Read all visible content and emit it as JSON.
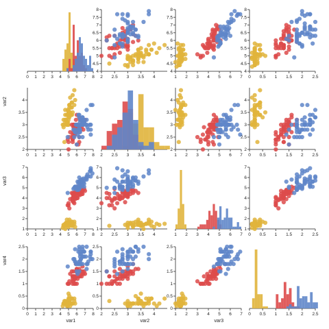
{
  "chart_data": {
    "type": "scatter-matrix",
    "variables": [
      "var1",
      "var2",
      "var3",
      "var4"
    ],
    "axis_titles_x": [
      "var1",
      "var2",
      "var3",
      ""
    ],
    "axis_titles_y": [
      "",
      "var2",
      "var3",
      "var4"
    ],
    "colors": [
      "#e0b43c",
      "#dd4b4b",
      "#5f86c9"
    ],
    "ranges": [
      [
        0,
        8
      ],
      [
        2,
        4.5
      ],
      [
        1,
        7
      ],
      [
        0,
        2.5
      ]
    ],
    "ticks": [
      [
        0,
        1,
        2,
        3,
        4,
        5,
        6,
        7,
        8
      ],
      [
        2,
        2.5,
        3,
        3.5,
        4
      ],
      [
        1,
        2,
        3,
        4,
        5,
        6,
        7
      ],
      [
        0,
        0.5,
        1,
        1.5,
        2,
        2.5
      ]
    ],
    "scatter_y_ticks": [
      [
        "4",
        "4.5",
        "5",
        "5.5",
        "6",
        "6.5",
        "7",
        "7.5",
        "8"
      ],
      [
        "2",
        "2.5",
        "3",
        "3.5",
        "4"
      ],
      [
        "1",
        "2",
        "3",
        "4",
        "5",
        "6",
        "7"
      ],
      [
        "0",
        "0.5",
        "1",
        "1.5",
        "2",
        "2.5"
      ]
    ],
    "scatter_y_range_row0": [
      4,
      8
    ],
    "histogram_bins": [
      {
        "var": "var1",
        "bin_width": 0.25
      },
      {
        "var": "var2",
        "bin_width": 0.2
      },
      {
        "var": "var3",
        "bin_width": 0.2
      },
      {
        "var": "var4",
        "bin_width": 0.1
      }
    ],
    "series": [
      {
        "points": [
          [
            5.1,
            3.5,
            1.4,
            0.2
          ],
          [
            4.9,
            3.0,
            1.4,
            0.2
          ],
          [
            4.7,
            3.2,
            1.3,
            0.2
          ],
          [
            4.6,
            3.1,
            1.5,
            0.2
          ],
          [
            5.0,
            3.6,
            1.4,
            0.2
          ],
          [
            5.4,
            3.9,
            1.7,
            0.4
          ],
          [
            4.6,
            3.4,
            1.4,
            0.3
          ],
          [
            5.0,
            3.4,
            1.5,
            0.2
          ],
          [
            4.4,
            2.9,
            1.4,
            0.2
          ],
          [
            4.9,
            3.1,
            1.5,
            0.1
          ],
          [
            5.4,
            3.7,
            1.5,
            0.2
          ],
          [
            4.8,
            3.4,
            1.6,
            0.2
          ],
          [
            4.8,
            3.0,
            1.4,
            0.1
          ],
          [
            4.3,
            3.0,
            1.1,
            0.1
          ],
          [
            5.8,
            4.0,
            1.2,
            0.2
          ],
          [
            5.7,
            4.4,
            1.5,
            0.4
          ],
          [
            5.4,
            3.9,
            1.3,
            0.4
          ],
          [
            5.1,
            3.5,
            1.4,
            0.3
          ],
          [
            5.7,
            3.8,
            1.7,
            0.3
          ],
          [
            5.1,
            3.8,
            1.5,
            0.3
          ],
          [
            5.4,
            3.4,
            1.7,
            0.2
          ],
          [
            5.1,
            3.7,
            1.5,
            0.4
          ],
          [
            4.6,
            3.6,
            1.0,
            0.2
          ],
          [
            5.1,
            3.3,
            1.7,
            0.5
          ],
          [
            4.8,
            3.4,
            1.9,
            0.2
          ],
          [
            5.0,
            3.0,
            1.6,
            0.2
          ],
          [
            5.0,
            3.4,
            1.6,
            0.4
          ],
          [
            5.2,
            3.5,
            1.5,
            0.2
          ],
          [
            5.2,
            3.4,
            1.4,
            0.2
          ],
          [
            4.7,
            3.2,
            1.6,
            0.2
          ],
          [
            4.8,
            3.1,
            1.6,
            0.2
          ],
          [
            5.4,
            3.4,
            1.5,
            0.4
          ],
          [
            5.2,
            4.1,
            1.5,
            0.1
          ],
          [
            5.5,
            4.2,
            1.4,
            0.2
          ],
          [
            4.9,
            3.1,
            1.5,
            0.2
          ],
          [
            5.0,
            3.2,
            1.2,
            0.2
          ],
          [
            5.5,
            3.5,
            1.3,
            0.2
          ],
          [
            4.9,
            3.6,
            1.4,
            0.1
          ],
          [
            4.4,
            3.0,
            1.3,
            0.2
          ],
          [
            5.1,
            3.4,
            1.5,
            0.2
          ],
          [
            5.0,
            3.5,
            1.3,
            0.3
          ],
          [
            4.5,
            2.3,
            1.3,
            0.3
          ],
          [
            4.4,
            3.2,
            1.3,
            0.2
          ],
          [
            5.0,
            3.5,
            1.6,
            0.6
          ],
          [
            5.1,
            3.8,
            1.9,
            0.4
          ],
          [
            4.8,
            3.0,
            1.4,
            0.3
          ],
          [
            5.1,
            3.8,
            1.6,
            0.2
          ],
          [
            4.6,
            3.2,
            1.4,
            0.2
          ],
          [
            5.3,
            3.7,
            1.5,
            0.2
          ],
          [
            5.0,
            3.3,
            1.4,
            0.2
          ]
        ]
      },
      {
        "points": [
          [
            7.0,
            3.2,
            4.7,
            1.4
          ],
          [
            6.4,
            3.2,
            4.5,
            1.5
          ],
          [
            6.9,
            3.1,
            4.9,
            1.5
          ],
          [
            5.5,
            2.3,
            4.0,
            1.3
          ],
          [
            6.5,
            2.8,
            4.6,
            1.5
          ],
          [
            5.7,
            2.8,
            4.5,
            1.3
          ],
          [
            6.3,
            3.3,
            4.7,
            1.6
          ],
          [
            4.9,
            2.4,
            3.3,
            1.0
          ],
          [
            6.6,
            2.9,
            4.6,
            1.3
          ],
          [
            5.2,
            2.7,
            3.9,
            1.4
          ],
          [
            5.0,
            2.0,
            3.5,
            1.0
          ],
          [
            5.9,
            3.0,
            4.2,
            1.5
          ],
          [
            6.0,
            2.2,
            4.0,
            1.0
          ],
          [
            6.1,
            2.9,
            4.7,
            1.4
          ],
          [
            5.6,
            2.9,
            3.6,
            1.3
          ],
          [
            6.7,
            3.1,
            4.4,
            1.4
          ],
          [
            5.6,
            3.0,
            4.5,
            1.5
          ],
          [
            5.8,
            2.7,
            4.1,
            1.0
          ],
          [
            6.2,
            2.2,
            4.5,
            1.5
          ],
          [
            5.6,
            2.5,
            3.9,
            1.1
          ],
          [
            5.9,
            3.2,
            4.8,
            1.8
          ],
          [
            6.1,
            2.8,
            4.0,
            1.3
          ],
          [
            6.3,
            2.5,
            4.9,
            1.5
          ],
          [
            6.1,
            2.8,
            4.7,
            1.2
          ],
          [
            6.4,
            2.9,
            4.3,
            1.3
          ],
          [
            6.6,
            3.0,
            4.4,
            1.4
          ],
          [
            6.8,
            2.8,
            4.8,
            1.4
          ],
          [
            6.7,
            3.0,
            5.0,
            1.7
          ],
          [
            6.0,
            2.9,
            4.5,
            1.5
          ],
          [
            5.7,
            2.6,
            3.5,
            1.0
          ],
          [
            5.5,
            2.4,
            3.8,
            1.1
          ],
          [
            5.5,
            2.4,
            3.7,
            1.0
          ],
          [
            5.8,
            2.7,
            3.9,
            1.2
          ],
          [
            6.0,
            2.7,
            5.1,
            1.6
          ],
          [
            5.4,
            3.0,
            4.5,
            1.5
          ],
          [
            6.0,
            3.4,
            4.5,
            1.6
          ],
          [
            6.7,
            3.1,
            4.7,
            1.5
          ],
          [
            6.3,
            2.3,
            4.4,
            1.3
          ],
          [
            5.6,
            3.0,
            4.1,
            1.3
          ],
          [
            5.5,
            2.5,
            4.0,
            1.3
          ],
          [
            5.5,
            2.6,
            4.4,
            1.2
          ],
          [
            6.1,
            3.0,
            4.6,
            1.4
          ],
          [
            5.8,
            2.6,
            4.0,
            1.2
          ],
          [
            5.0,
            2.3,
            3.3,
            1.0
          ],
          [
            5.6,
            2.7,
            4.2,
            1.3
          ],
          [
            5.7,
            3.0,
            4.2,
            1.2
          ],
          [
            5.7,
            2.9,
            4.2,
            1.3
          ],
          [
            6.2,
            2.9,
            4.3,
            1.3
          ],
          [
            5.1,
            2.5,
            3.0,
            1.1
          ],
          [
            5.7,
            2.8,
            4.1,
            1.3
          ]
        ]
      },
      {
        "points": [
          [
            6.3,
            3.3,
            6.0,
            2.5
          ],
          [
            5.8,
            2.7,
            5.1,
            1.9
          ],
          [
            7.1,
            3.0,
            5.9,
            2.1
          ],
          [
            6.3,
            2.9,
            5.6,
            1.8
          ],
          [
            6.5,
            3.0,
            5.8,
            2.2
          ],
          [
            7.6,
            3.0,
            6.6,
            2.1
          ],
          [
            4.9,
            2.5,
            4.5,
            1.7
          ],
          [
            7.3,
            2.9,
            6.3,
            1.8
          ],
          [
            6.7,
            2.5,
            5.8,
            1.8
          ],
          [
            7.2,
            3.6,
            6.1,
            2.5
          ],
          [
            6.5,
            3.2,
            5.1,
            2.0
          ],
          [
            6.4,
            2.7,
            5.3,
            1.9
          ],
          [
            6.8,
            3.0,
            5.5,
            2.1
          ],
          [
            5.7,
            2.5,
            5.0,
            2.0
          ],
          [
            5.8,
            2.8,
            5.1,
            2.4
          ],
          [
            6.4,
            3.2,
            5.3,
            2.3
          ],
          [
            6.5,
            3.0,
            5.5,
            1.8
          ],
          [
            7.7,
            3.8,
            6.7,
            2.2
          ],
          [
            7.7,
            2.6,
            6.9,
            2.3
          ],
          [
            6.0,
            2.2,
            5.0,
            1.5
          ],
          [
            6.9,
            3.2,
            5.7,
            2.3
          ],
          [
            5.6,
            2.8,
            4.9,
            2.0
          ],
          [
            7.7,
            2.8,
            6.7,
            2.0
          ],
          [
            6.3,
            2.7,
            4.9,
            1.8
          ],
          [
            6.7,
            3.3,
            5.7,
            2.1
          ],
          [
            7.2,
            3.2,
            6.0,
            1.8
          ],
          [
            6.2,
            2.8,
            4.8,
            1.8
          ],
          [
            6.1,
            3.0,
            4.9,
            1.8
          ],
          [
            6.4,
            2.8,
            5.6,
            2.1
          ],
          [
            7.2,
            3.0,
            5.8,
            1.6
          ],
          [
            7.4,
            2.8,
            6.1,
            1.9
          ],
          [
            7.9,
            3.8,
            6.4,
            2.0
          ],
          [
            6.4,
            2.8,
            5.6,
            2.2
          ],
          [
            6.3,
            2.8,
            5.1,
            1.5
          ],
          [
            6.1,
            2.6,
            5.6,
            1.4
          ],
          [
            7.7,
            3.0,
            6.1,
            2.3
          ],
          [
            6.3,
            3.4,
            5.6,
            2.4
          ],
          [
            6.4,
            3.1,
            5.5,
            1.8
          ],
          [
            6.0,
            3.0,
            4.8,
            1.8
          ],
          [
            6.9,
            3.1,
            5.4,
            2.1
          ],
          [
            6.7,
            3.1,
            5.6,
            2.4
          ],
          [
            6.9,
            3.1,
            5.1,
            2.3
          ],
          [
            5.8,
            2.7,
            5.1,
            1.9
          ],
          [
            6.8,
            3.2,
            5.9,
            2.3
          ],
          [
            6.7,
            3.3,
            5.7,
            2.5
          ],
          [
            6.7,
            3.0,
            5.2,
            2.3
          ],
          [
            6.3,
            2.5,
            5.0,
            1.9
          ],
          [
            6.5,
            3.0,
            5.2,
            2.0
          ],
          [
            6.2,
            3.4,
            5.4,
            2.3
          ],
          [
            5.9,
            3.0,
            5.1,
            1.8
          ]
        ]
      }
    ]
  }
}
